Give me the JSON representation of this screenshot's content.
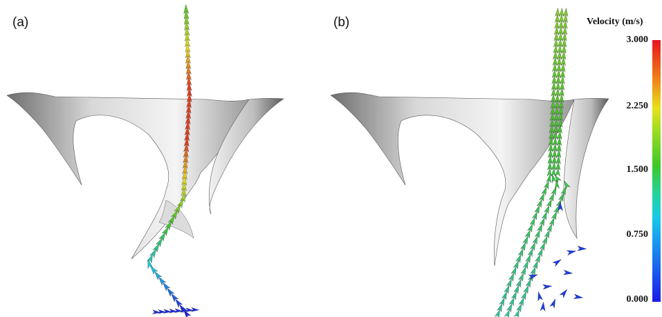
{
  "panels": [
    {
      "label": "(a)"
    },
    {
      "label": "(b)"
    }
  ],
  "legend": {
    "title": "Velocity (m/s)",
    "ticks": [
      "3.000",
      "2.250",
      "1.500",
      "0.750",
      "0.000"
    ],
    "colors": [
      "#1a1ae8",
      "#18c8e8",
      "#3ec828",
      "#e8e01a",
      "#e8141e"
    ]
  }
}
